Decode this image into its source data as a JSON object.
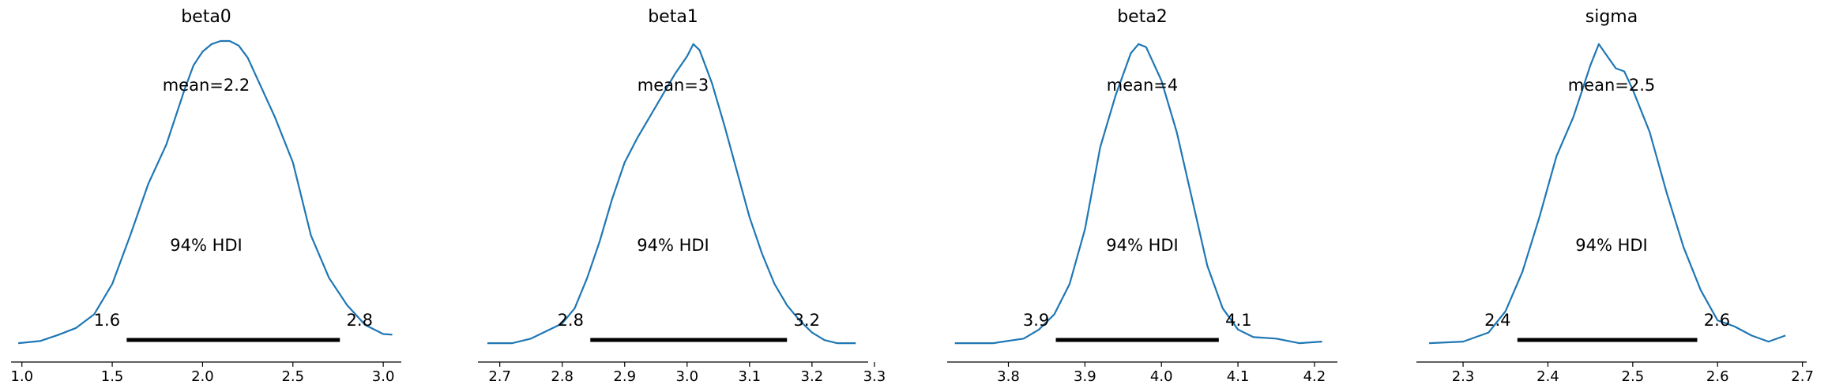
{
  "chart_data": [
    {
      "type": "line",
      "title": "beta0",
      "mean_label": "mean=2.2",
      "hdi_label": "94% HDI",
      "hdi": [
        1.58,
        2.76
      ],
      "hdi_lower_label": "1.6",
      "hdi_upper_label": "2.8",
      "xlim": [
        0.94,
        3.1
      ],
      "xticks": [
        1.0,
        1.5,
        2.0,
        2.5,
        3.0
      ],
      "xtick_labels": [
        "1.0",
        "1.5",
        "2.0",
        "2.5",
        "3.0"
      ],
      "density_x": [
        0.98,
        1.1,
        1.2,
        1.3,
        1.4,
        1.5,
        1.6,
        1.7,
        1.8,
        1.9,
        1.95,
        2.0,
        2.05,
        2.1,
        2.15,
        2.2,
        2.25,
        2.3,
        2.4,
        2.5,
        2.6,
        2.7,
        2.8,
        2.9,
        3.0,
        3.05
      ],
      "density_y": [
        0.005,
        0.012,
        0.032,
        0.055,
        0.1,
        0.2,
        0.36,
        0.53,
        0.66,
        0.84,
        0.92,
        0.965,
        0.99,
        1.0,
        1.0,
        0.985,
        0.945,
        0.88,
        0.75,
        0.6,
        0.36,
        0.22,
        0.13,
        0.065,
        0.035,
        0.033
      ]
    },
    {
      "type": "line",
      "title": "beta1",
      "mean_label": "mean=3",
      "hdi_label": "94% HDI",
      "hdi": [
        2.845,
        3.16
      ],
      "hdi_lower_label": "2.8",
      "hdi_upper_label": "3.2",
      "xlim": [
        2.665,
        3.29
      ],
      "xticks": [
        2.7,
        2.8,
        2.9,
        3.0,
        3.1,
        3.2,
        3.3
      ],
      "xtick_labels": [
        "2.7",
        "2.8",
        "2.9",
        "3.0",
        "3.1",
        "3.2",
        "3.3"
      ],
      "density_x": [
        2.68,
        2.72,
        2.75,
        2.78,
        2.8,
        2.82,
        2.84,
        2.86,
        2.88,
        2.9,
        2.92,
        2.94,
        2.96,
        2.98,
        3.0,
        3.01,
        3.02,
        3.04,
        3.06,
        3.08,
        3.1,
        3.12,
        3.14,
        3.16,
        3.18,
        3.2,
        3.22,
        3.24,
        3.27
      ],
      "density_y": [
        0.005,
        0.005,
        0.02,
        0.05,
        0.07,
        0.12,
        0.22,
        0.34,
        0.48,
        0.6,
        0.68,
        0.75,
        0.82,
        0.89,
        0.95,
        0.99,
        0.97,
        0.86,
        0.72,
        0.57,
        0.42,
        0.3,
        0.2,
        0.13,
        0.08,
        0.04,
        0.015,
        0.005,
        0.005
      ]
    },
    {
      "type": "line",
      "title": "beta2",
      "mean_label": "mean=4",
      "hdi_label": "94% HDI",
      "hdi": [
        3.862,
        4.075
      ],
      "hdi_lower_label": "3.9",
      "hdi_upper_label": "4.1",
      "xlim": [
        3.72,
        4.23
      ],
      "xticks": [
        3.8,
        3.9,
        4.0,
        4.1,
        4.2
      ],
      "xtick_labels": [
        "3.8",
        "3.9",
        "4.0",
        "4.1",
        "4.2"
      ],
      "density_x": [
        3.73,
        3.78,
        3.82,
        3.84,
        3.86,
        3.88,
        3.9,
        3.92,
        3.94,
        3.96,
        3.97,
        3.98,
        4.0,
        4.02,
        4.04,
        4.06,
        4.08,
        4.1,
        4.12,
        4.15,
        4.18,
        4.21
      ],
      "density_y": [
        0.005,
        0.005,
        0.02,
        0.05,
        0.1,
        0.2,
        0.38,
        0.65,
        0.82,
        0.96,
        0.99,
        0.98,
        0.87,
        0.7,
        0.48,
        0.26,
        0.12,
        0.05,
        0.025,
        0.02,
        0.005,
        0.01
      ]
    },
    {
      "type": "line",
      "title": "sigma",
      "mean_label": "mean=2.5",
      "hdi_label": "94% HDI",
      "hdi": [
        2.364,
        2.576
      ],
      "hdi_lower_label": "2.4",
      "hdi_upper_label": "2.6",
      "xlim": [
        2.245,
        2.705
      ],
      "xticks": [
        2.3,
        2.4,
        2.5,
        2.6,
        2.7
      ],
      "xtick_labels": [
        "2.3",
        "2.4",
        "2.5",
        "2.6",
        "2.7"
      ],
      "density_x": [
        2.26,
        2.3,
        2.33,
        2.35,
        2.37,
        2.39,
        2.41,
        2.43,
        2.45,
        2.46,
        2.47,
        2.48,
        2.49,
        2.5,
        2.52,
        2.54,
        2.56,
        2.58,
        2.6,
        2.62,
        2.64,
        2.66,
        2.68
      ],
      "density_y": [
        0.005,
        0.01,
        0.04,
        0.11,
        0.24,
        0.42,
        0.62,
        0.75,
        0.92,
        0.99,
        0.95,
        0.91,
        0.9,
        0.84,
        0.7,
        0.5,
        0.32,
        0.18,
        0.08,
        0.06,
        0.03,
        0.01,
        0.03
      ]
    }
  ]
}
